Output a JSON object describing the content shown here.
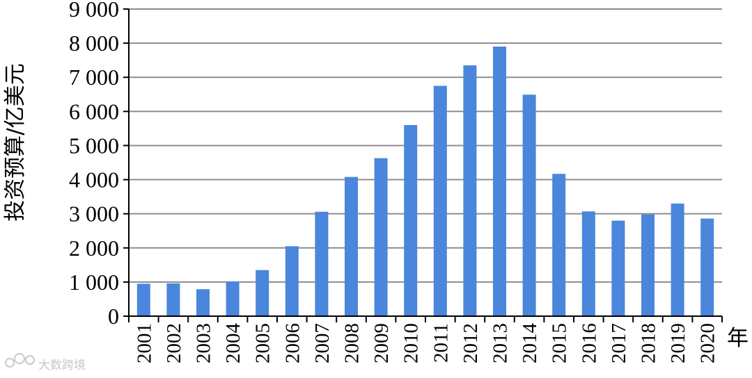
{
  "chart_data": {
    "type": "bar",
    "title": "",
    "xlabel": "年",
    "ylabel": "投资预算/亿美元",
    "categories": [
      "2001",
      "2002",
      "2003",
      "2004",
      "2005",
      "2006",
      "2007",
      "2008",
      "2009",
      "2010",
      "2011",
      "2012",
      "2013",
      "2014",
      "2015",
      "2016",
      "2017",
      "2018",
      "2019",
      "2020"
    ],
    "values": [
      950,
      960,
      790,
      1010,
      1350,
      2050,
      3060,
      4080,
      4630,
      5600,
      6750,
      7350,
      7900,
      6490,
      4170,
      3070,
      2800,
      2980,
      3300,
      2860
    ],
    "ylim": [
      0,
      9000
    ],
    "yticks": [
      0,
      1000,
      2000,
      3000,
      4000,
      5000,
      6000,
      7000,
      8000,
      9000
    ],
    "ytick_labels": [
      "0",
      "1 000",
      "2 000",
      "3 000",
      "4 000",
      "5 000",
      "6 000",
      "7 000",
      "8 000",
      "9 000"
    ],
    "grid": true,
    "legend": "none",
    "bar_color": "#4a86dc"
  },
  "watermark": {
    "text": "大数跨境"
  }
}
